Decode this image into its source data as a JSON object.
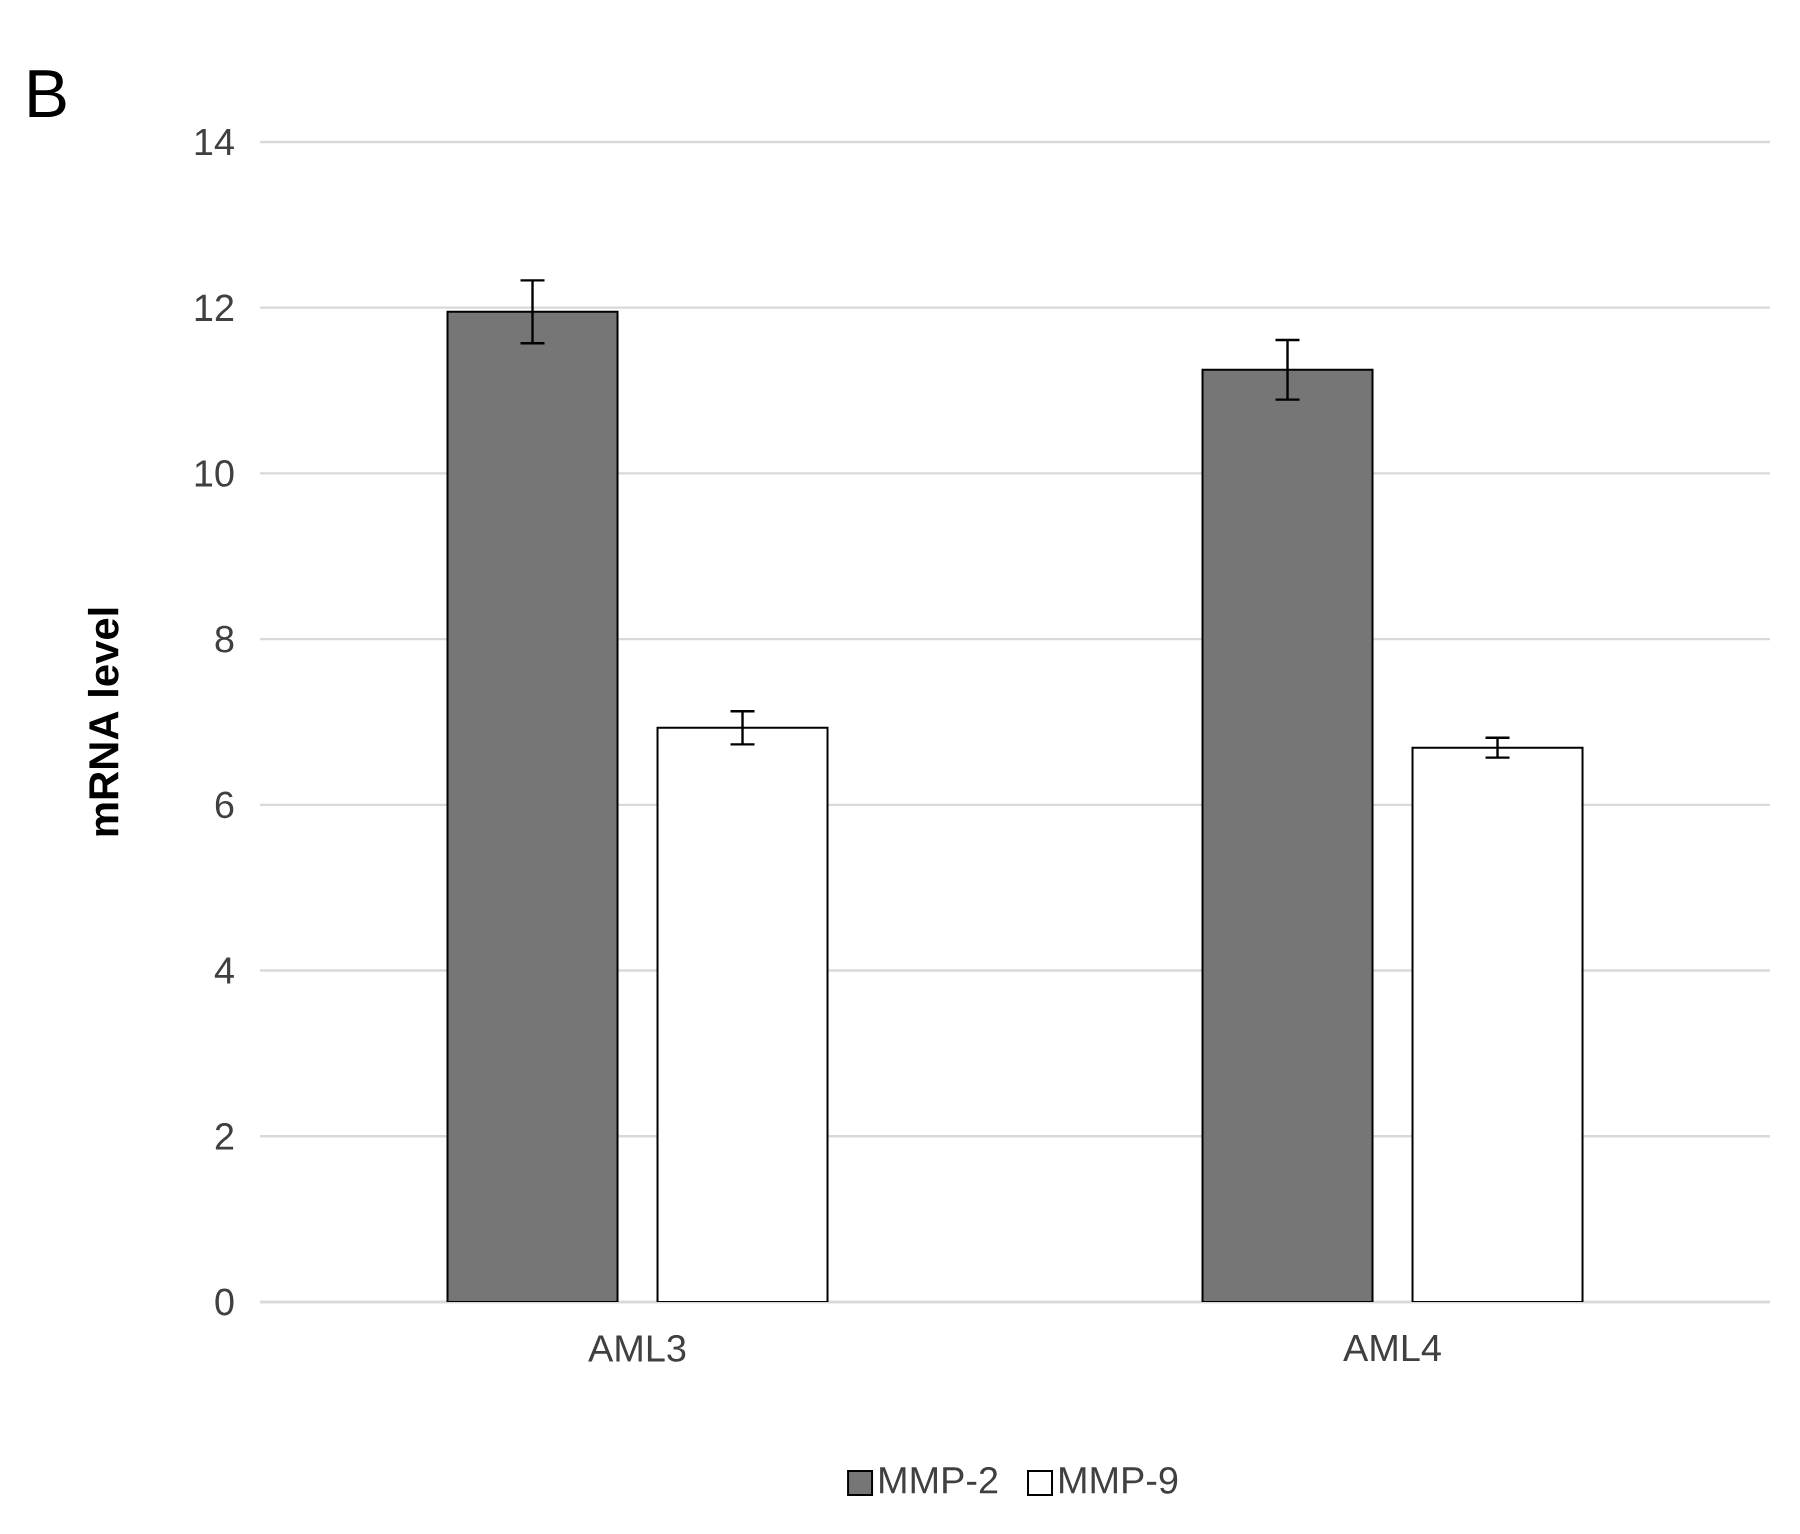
{
  "chart_data": {
    "type": "bar",
    "title": "B",
    "ylabel": "mRNA level",
    "categories": [
      "AML3",
      "AML4"
    ],
    "series": [
      {
        "name": "MMP-2",
        "color": "#767676",
        "values": [
          11.95,
          11.25
        ],
        "errors": [
          0.38,
          0.36
        ]
      },
      {
        "name": "MMP-9",
        "color": "#ffffff",
        "values": [
          6.93,
          6.69
        ],
        "errors": [
          0.2,
          0.12
        ]
      }
    ],
    "ylim": [
      0,
      14
    ],
    "yticks": [
      0,
      2,
      4,
      6,
      8,
      10,
      12,
      14
    ],
    "grid": "y",
    "legend": "bottom"
  }
}
